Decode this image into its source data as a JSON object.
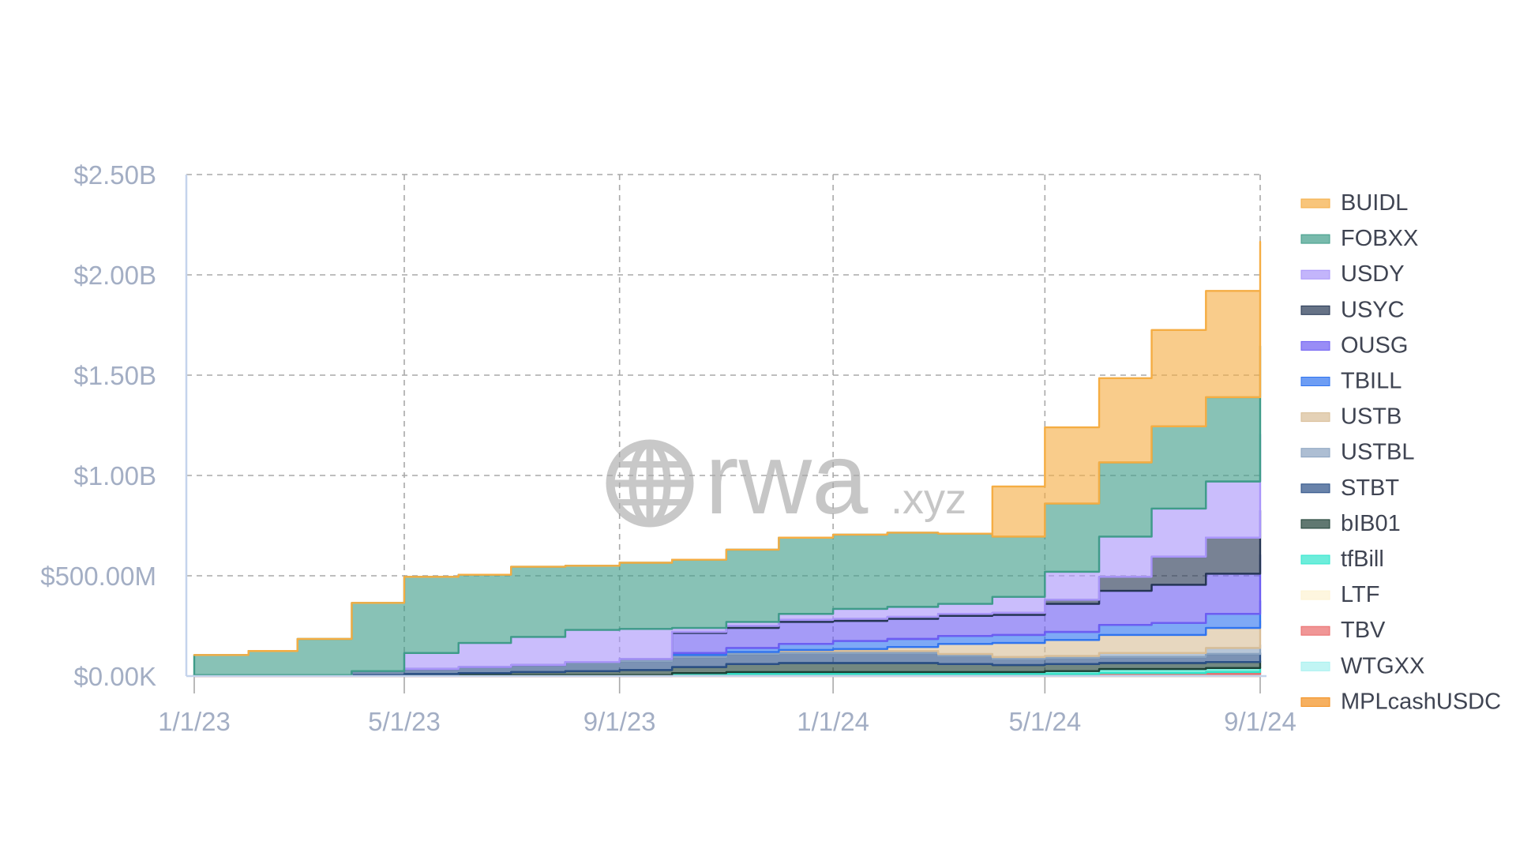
{
  "watermark": {
    "brand": "rwa",
    "suffix": ".xyz",
    "icon": "globe-icon"
  },
  "chart_data": {
    "type": "area",
    "stacked": true,
    "x_tick_labels": [
      "1/1/23",
      "5/1/23",
      "9/1/23",
      "1/1/24",
      "5/1/24",
      "9/1/24"
    ],
    "y_tick_labels": [
      "$0.00K",
      "$500.00M",
      "$1.00B",
      "$1.50B",
      "$2.00B",
      "$2.50B"
    ],
    "ylim": [
      0,
      2.5
    ],
    "y_unit": "billions USD",
    "grid": true,
    "legend_position": "right",
    "x": [
      "2023-01-01",
      "2023-02-01",
      "2023-03-01",
      "2023-04-01",
      "2023-05-01",
      "2023-06-01",
      "2023-07-01",
      "2023-08-01",
      "2023-09-01",
      "2023-10-01",
      "2023-11-01",
      "2023-12-01",
      "2024-01-01",
      "2024-02-01",
      "2024-03-01",
      "2024-04-01",
      "2024-05-01",
      "2024-06-01",
      "2024-07-01",
      "2024-08-01",
      "2024-09-01"
    ],
    "series": [
      {
        "name": "MPLcashUSDC",
        "color": "#f28e1c",
        "values": [
          0,
          0,
          0,
          0,
          0,
          0,
          0,
          0,
          0,
          0.005,
          0.005,
          0.005,
          0.005,
          0.005,
          0.005,
          0.005,
          0.005,
          0.005,
          0.005,
          0.005,
          0.005
        ]
      },
      {
        "name": "WTGXX",
        "color": "#a7f1ef",
        "values": [
          0,
          0,
          0,
          0,
          0,
          0,
          0,
          0,
          0,
          0,
          0,
          0,
          0,
          0,
          0,
          0,
          0,
          0.005,
          0.005,
          0.005,
          0.005
        ]
      },
      {
        "name": "TBV",
        "color": "#ea6a6a",
        "values": [
          0.005,
          0.005,
          0.005,
          0.005,
          0.005,
          0.005,
          0.005,
          0.005,
          0.005,
          0.005,
          0.005,
          0.005,
          0.005,
          0.005,
          0.005,
          0.005,
          0.005,
          0.005,
          0.005,
          0.01,
          0.01
        ]
      },
      {
        "name": "LTF",
        "color": "#fdf2d2",
        "values": [
          0,
          0,
          0,
          0,
          0,
          0,
          0,
          0,
          0,
          0,
          0,
          0,
          0,
          0,
          0,
          0,
          0,
          0,
          0,
          0,
          0
        ]
      },
      {
        "name": "tfBill",
        "color": "#2fe6cc",
        "values": [
          0,
          0,
          0,
          0,
          0,
          0,
          0,
          0,
          0,
          0.005,
          0.01,
          0.01,
          0.01,
          0.01,
          0.01,
          0.01,
          0.015,
          0.02,
          0.02,
          0.02,
          0.025
        ]
      },
      {
        "name": "bIB01",
        "color": "#1d3f34",
        "values": [
          0,
          0,
          0,
          0,
          0.005,
          0.01,
          0.015,
          0.02,
          0.025,
          0.03,
          0.04,
          0.045,
          0.045,
          0.045,
          0.04,
          0.035,
          0.035,
          0.03,
          0.03,
          0.03,
          0.03
        ]
      },
      {
        "name": "STBT",
        "color": "#2a4f86",
        "values": [
          0,
          0,
          0,
          0.02,
          0.025,
          0.03,
          0.035,
          0.04,
          0.045,
          0.05,
          0.05,
          0.05,
          0.05,
          0.05,
          0.04,
          0.03,
          0.03,
          0.03,
          0.03,
          0.04,
          0.04
        ]
      },
      {
        "name": "USTBL",
        "color": "#8aa3c0",
        "values": [
          0,
          0,
          0,
          0,
          0,
          0,
          0,
          0.005,
          0.01,
          0.01,
          0.01,
          0.01,
          0.01,
          0.01,
          0.01,
          0.01,
          0.01,
          0.02,
          0.02,
          0.03,
          0.04
        ]
      },
      {
        "name": "USTB",
        "color": "#d9be97",
        "values": [
          0,
          0,
          0,
          0,
          0,
          0,
          0,
          0,
          0,
          0,
          0,
          0.005,
          0.01,
          0.02,
          0.05,
          0.07,
          0.08,
          0.09,
          0.09,
          0.1,
          0.12
        ]
      },
      {
        "name": "TBILL",
        "color": "#2f74f0",
        "values": [
          0,
          0,
          0,
          0,
          0,
          0,
          0,
          0,
          0,
          0.01,
          0.02,
          0.03,
          0.04,
          0.04,
          0.04,
          0.04,
          0.04,
          0.05,
          0.06,
          0.07,
          0.1
        ]
      },
      {
        "name": "OUSG",
        "color": "#6d5df2",
        "values": [
          0,
          0,
          0,
          0,
          0,
          0,
          0,
          0,
          0,
          0.1,
          0.1,
          0.11,
          0.1,
          0.1,
          0.1,
          0.1,
          0.14,
          0.17,
          0.19,
          0.2,
          0.23
        ]
      },
      {
        "name": "USYC",
        "color": "#253653",
        "values": [
          0,
          0,
          0,
          0,
          0,
          0,
          0,
          0,
          0,
          0.005,
          0.01,
          0.01,
          0.01,
          0.01,
          0.01,
          0.01,
          0.02,
          0.07,
          0.14,
          0.18,
          0.22
        ]
      },
      {
        "name": "USDY",
        "color": "#a995fa",
        "values": [
          0,
          0,
          0,
          0,
          0.08,
          0.12,
          0.14,
          0.16,
          0.15,
          0.02,
          0.02,
          0.03,
          0.05,
          0.05,
          0.05,
          0.08,
          0.14,
          0.2,
          0.24,
          0.28,
          0.38
        ]
      },
      {
        "name": "FOBXX",
        "color": "#3f9c89",
        "values": [
          0.1,
          0.12,
          0.18,
          0.34,
          0.38,
          0.34,
          0.35,
          0.32,
          0.33,
          0.34,
          0.36,
          0.38,
          0.37,
          0.37,
          0.35,
          0.3,
          0.34,
          0.37,
          0.41,
          0.42,
          0.44
        ]
      },
      {
        "name": "BUIDL",
        "color": "#f5ad43",
        "values": [
          0,
          0,
          0,
          0,
          0,
          0,
          0,
          0,
          0,
          0,
          0,
          0,
          0,
          0,
          0,
          0.25,
          0.38,
          0.42,
          0.48,
          0.53,
          0.52
        ]
      }
    ]
  }
}
